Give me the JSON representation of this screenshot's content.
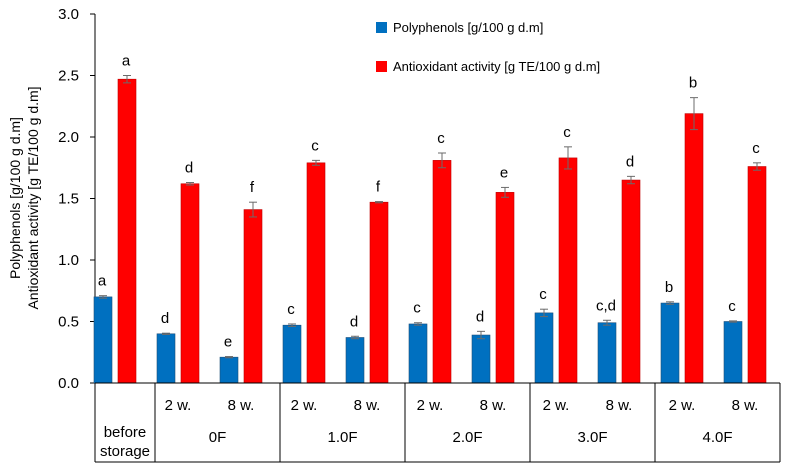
{
  "chart_data": {
    "type": "bar",
    "ylim": [
      0,
      3.0
    ],
    "yticks": [
      "0.0",
      "0.5",
      "1.0",
      "1.5",
      "2.0",
      "2.5",
      "3.0"
    ],
    "ylabel_lines": [
      "Polyphenols [g/100 g d.m]",
      "Antioxidant activity [g TE/100 g d.m]"
    ],
    "groups": [
      {
        "label": "before storage",
        "label_lines": [
          "before",
          "storage"
        ],
        "subs": [
          ""
        ]
      },
      {
        "label": "0F",
        "subs": [
          "2 w.",
          "8 w."
        ]
      },
      {
        "label": "1.0F",
        "subs": [
          "2 w.",
          "8 w."
        ]
      },
      {
        "label": "2.0F",
        "subs": [
          "2 w.",
          "8 w."
        ]
      },
      {
        "label": "3.0F",
        "subs": [
          "2 w.",
          "8 w."
        ]
      },
      {
        "label": "4.0F",
        "subs": [
          "2 w.",
          "8 w."
        ]
      }
    ],
    "categories": [
      "before storage",
      "0F 2 w.",
      "0F 8 w.",
      "1.0F 2 w.",
      "1.0F 8 w.",
      "2.0F 2 w.",
      "2.0F 8 w.",
      "3.0F 2 w.",
      "3.0F 8 w.",
      "4.0F 2 w.",
      "4.0F 8 w."
    ],
    "series": [
      {
        "name": "Polyphenols [g/100 g d.m]",
        "color": "#0070C0",
        "values": [
          0.7,
          0.4,
          0.21,
          0.47,
          0.37,
          0.48,
          0.39,
          0.57,
          0.49,
          0.65,
          0.5
        ],
        "errors": [
          0.01,
          0.005,
          0.005,
          0.01,
          0.01,
          0.01,
          0.03,
          0.03,
          0.02,
          0.01,
          0.005
        ],
        "letters": [
          "a",
          "d",
          "e",
          "c",
          "d",
          "c",
          "d",
          "c",
          "c,d",
          "b",
          "c"
        ]
      },
      {
        "name": "Antioxidant activity [g TE/100 g d.m]",
        "color": "#FF0000",
        "values": [
          2.47,
          1.62,
          1.41,
          1.79,
          1.47,
          1.81,
          1.55,
          1.83,
          1.65,
          2.19,
          1.76
        ],
        "errors": [
          0.03,
          0.01,
          0.06,
          0.02,
          0.005,
          0.06,
          0.04,
          0.09,
          0.03,
          0.13,
          0.03
        ],
        "letters": [
          "a",
          "d",
          "f",
          "c",
          "f",
          "c",
          "e",
          "c",
          "d",
          "b",
          "c"
        ]
      }
    ],
    "legend_position": "top-right",
    "grid": false
  }
}
